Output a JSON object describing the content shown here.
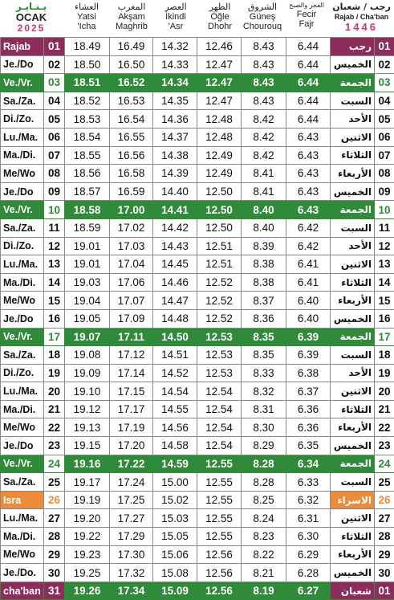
{
  "header": {
    "left": {
      "ar": "يـنـايـر",
      "month": "OCAK",
      "year": "2025"
    },
    "cols": [
      {
        "ar": "العشاء",
        "l1": "Yatsi",
        "l2": "'Icha"
      },
      {
        "ar": "المغرب",
        "l1": "Akşam",
        "l2": "Maghrib"
      },
      {
        "ar": "العصر",
        "l1": "İkindi",
        "l2": "'Asr"
      },
      {
        "ar": "الظهر",
        "l1": "Öğle",
        "l2": "Dhohr"
      },
      {
        "ar": "الشروق",
        "l1": "Güneş",
        "l2": "Chourouq"
      },
      {
        "ar": "الفجر والصبح",
        "l1": "Fecir",
        "l2": "Fajr"
      }
    ],
    "right": {
      "ar": "رجب / شعبان",
      "sub": "Rajab / Cha'ban",
      "year": "1446"
    }
  },
  "colors": {
    "friday": "#2f8a3a",
    "month_start": "#8e2d5c",
    "isra": "#ec8c3a",
    "year": "#c8366f"
  },
  "rows": [
    {
      "day": "Rajab",
      "d": "01",
      "t": [
        "18.49",
        "16.49",
        "14.32",
        "12.46",
        "8.43",
        "6.44"
      ],
      "ar": "رجب",
      "h": "01",
      "type": "spec"
    },
    {
      "day": "Je./Do",
      "d": "02",
      "t": [
        "18.50",
        "16.50",
        "14.33",
        "12.47",
        "8.43",
        "6.44"
      ],
      "ar": "الخميس",
      "h": "02",
      "type": ""
    },
    {
      "day": "Ve./Vr.",
      "d": "03",
      "t": [
        "18.51",
        "16.52",
        "14.34",
        "12.47",
        "8.43",
        "6.44"
      ],
      "ar": "الجمعة",
      "h": "03",
      "type": "fri"
    },
    {
      "day": "Sa./Za.",
      "d": "04",
      "t": [
        "18.52",
        "16.53",
        "14.35",
        "12.47",
        "8.43",
        "6.44"
      ],
      "ar": "السبت",
      "h": "04",
      "type": ""
    },
    {
      "day": "Di./Zo.",
      "d": "05",
      "t": [
        "18.53",
        "16.54",
        "14.36",
        "12.48",
        "8.42",
        "6.44"
      ],
      "ar": "الأحد",
      "h": "05",
      "type": ""
    },
    {
      "day": "Lu./Ma.",
      "d": "06",
      "t": [
        "18.54",
        "16.55",
        "14.37",
        "12.48",
        "8.42",
        "6.43"
      ],
      "ar": "الاثنين",
      "h": "06",
      "type": ""
    },
    {
      "day": "Ma./Di.",
      "d": "07",
      "t": [
        "18.55",
        "16.56",
        "14.38",
        "12.49",
        "8.42",
        "6.43"
      ],
      "ar": "الثلاثاء",
      "h": "07",
      "type": ""
    },
    {
      "day": "Me/Wo",
      "d": "08",
      "t": [
        "18.56",
        "16.58",
        "14.39",
        "12.49",
        "8.41",
        "6.43"
      ],
      "ar": "الأربعاء",
      "h": "08",
      "type": ""
    },
    {
      "day": "Je./Do",
      "d": "09",
      "t": [
        "18.57",
        "16.59",
        "14.40",
        "12.50",
        "8.41",
        "6.43"
      ],
      "ar": "الخميس",
      "h": "09",
      "type": ""
    },
    {
      "day": "Ve./Vr.",
      "d": "10",
      "t": [
        "18.58",
        "17.00",
        "14.41",
        "12.50",
        "8.40",
        "6.43"
      ],
      "ar": "الجمعة",
      "h": "10",
      "type": "fri"
    },
    {
      "day": "Sa./Za.",
      "d": "11",
      "t": [
        "18.59",
        "17.02",
        "14.42",
        "12.50",
        "8.40",
        "6.42"
      ],
      "ar": "السبت",
      "h": "11",
      "type": ""
    },
    {
      "day": "Di./Zo.",
      "d": "12",
      "t": [
        "19.01",
        "17.03",
        "14.43",
        "12.51",
        "8.39",
        "6.42"
      ],
      "ar": "الأحد",
      "h": "12",
      "type": ""
    },
    {
      "day": "Lu./Ma.",
      "d": "13",
      "t": [
        "19.01",
        "17.04",
        "14.45",
        "12.51",
        "8.38",
        "6.41"
      ],
      "ar": "الاثنين",
      "h": "13",
      "type": ""
    },
    {
      "day": "Ma./Di.",
      "d": "14",
      "t": [
        "19.03",
        "17.06",
        "14.46",
        "12.52",
        "8.38",
        "6.41"
      ],
      "ar": "الثلاثاء",
      "h": "14",
      "type": ""
    },
    {
      "day": "Me/Wo",
      "d": "15",
      "t": [
        "19.04",
        "17.07",
        "14.47",
        "12.52",
        "8.37",
        "6.40"
      ],
      "ar": "الأربعاء",
      "h": "15",
      "type": ""
    },
    {
      "day": "Je./Do",
      "d": "16",
      "t": [
        "19.05",
        "17.09",
        "14.48",
        "12.52",
        "8.36",
        "6.40"
      ],
      "ar": "الخميس",
      "h": "16",
      "type": ""
    },
    {
      "day": "Ve./Vr.",
      "d": "17",
      "t": [
        "19.07",
        "17.11",
        "14.50",
        "12.53",
        "8.35",
        "6.39"
      ],
      "ar": "الجمعة",
      "h": "17",
      "type": "fri"
    },
    {
      "day": "Sa./Za.",
      "d": "18",
      "t": [
        "19.08",
        "17.12",
        "14.51",
        "12.53",
        "8.35",
        "6.39"
      ],
      "ar": "السبت",
      "h": "18",
      "type": ""
    },
    {
      "day": "Di./Zo.",
      "d": "19",
      "t": [
        "19.09",
        "17.14",
        "14.52",
        "12.53",
        "8.33",
        "6.38"
      ],
      "ar": "الأحد",
      "h": "19",
      "type": ""
    },
    {
      "day": "Lu./Ma.",
      "d": "20",
      "t": [
        "19.10",
        "17.15",
        "14.54",
        "12.54",
        "8.32",
        "6.37"
      ],
      "ar": "الاثنين",
      "h": "20",
      "type": ""
    },
    {
      "day": "Ma./Di.",
      "d": "21",
      "t": [
        "19.12",
        "17.17",
        "14.55",
        "12.54",
        "8.31",
        "6.36"
      ],
      "ar": "الثلاثاء",
      "h": "21",
      "type": ""
    },
    {
      "day": "Me/Wo",
      "d": "22",
      "t": [
        "19.13",
        "17.19",
        "14.56",
        "12.54",
        "8.30",
        "6.36"
      ],
      "ar": "الأربعاء",
      "h": "22",
      "type": ""
    },
    {
      "day": "Je./Do",
      "d": "23",
      "t": [
        "19.15",
        "17.20",
        "14.58",
        "12.54",
        "8.29",
        "6.35"
      ],
      "ar": "الخميس",
      "h": "23",
      "type": ""
    },
    {
      "day": "Ve./Vr.",
      "d": "24",
      "t": [
        "19.16",
        "17.22",
        "14.59",
        "12.55",
        "8.28",
        "6.34"
      ],
      "ar": "الجمعة",
      "h": "24",
      "type": "fri"
    },
    {
      "day": "Sa./Za.",
      "d": "25",
      "t": [
        "19.17",
        "17.24",
        "15.00",
        "12.55",
        "8.28",
        "6.33"
      ],
      "ar": "السبت",
      "h": "25",
      "type": ""
    },
    {
      "day": "Isra",
      "d": "26",
      "t": [
        "19.19",
        "17.25",
        "15.02",
        "12.55",
        "8.25",
        "6.32"
      ],
      "ar": "الاسراء",
      "h": "26",
      "type": "spec isra"
    },
    {
      "day": "Lu./Ma.",
      "d": "27",
      "t": [
        "19.20",
        "17.27",
        "15.03",
        "12.55",
        "8.24",
        "6.31"
      ],
      "ar": "الاثنين",
      "h": "27",
      "type": ""
    },
    {
      "day": "Ma./Di.",
      "d": "28",
      "t": [
        "19.22",
        "17.29",
        "15.05",
        "12.55",
        "8.23",
        "6.30"
      ],
      "ar": "الثلاثاء",
      "h": "28",
      "type": ""
    },
    {
      "day": "Me/Wo",
      "d": "29",
      "t": [
        "19.23",
        "17.30",
        "15.06",
        "12.56",
        "8.22",
        "6.29"
      ],
      "ar": "الأربعاء",
      "h": "29",
      "type": ""
    },
    {
      "day": "Je./Do.",
      "d": "30",
      "t": [
        "19.25",
        "17.32",
        "15.08",
        "12.56",
        "8.21",
        "6.28"
      ],
      "ar": "الخميس",
      "h": "30",
      "type": ""
    },
    {
      "day": "cha'ban",
      "d": "31",
      "t": [
        "19.26",
        "17.34",
        "15.09",
        "12.56",
        "8.19",
        "6.27"
      ],
      "ar": "شعبان",
      "h": "01",
      "type": "fri spec"
    }
  ]
}
